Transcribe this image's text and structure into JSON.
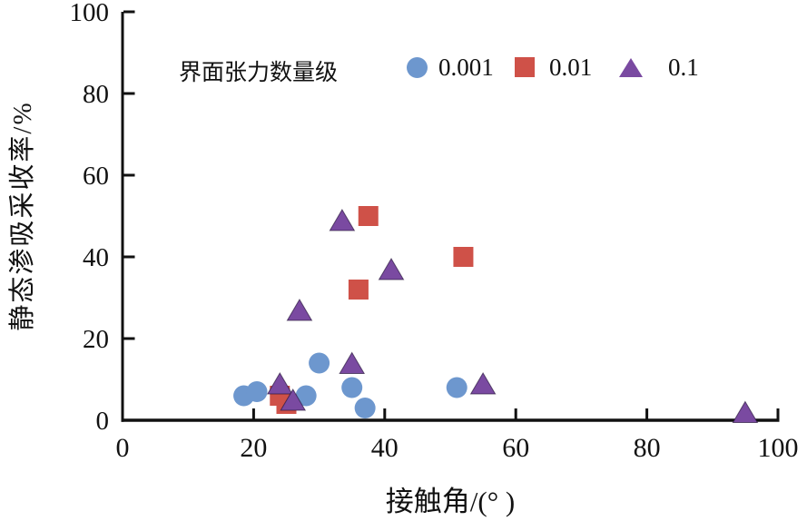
{
  "chart_data": {
    "type": "scatter",
    "title": "",
    "xlabel": "接触角/(°  )",
    "ylabel": "静态渗吸采收率/%",
    "xlim": [
      0,
      100
    ],
    "ylim": [
      0,
      100
    ],
    "xticks": [
      0,
      20,
      40,
      60,
      80,
      100
    ],
    "yticks": [
      0,
      20,
      40,
      60,
      80,
      100
    ],
    "grid": false,
    "legend_title": "界面张力数量级",
    "legend_position": "top-inside",
    "axis_color": "#111111",
    "background": "#ffffff",
    "series": [
      {
        "name": "0.001",
        "marker": "circle",
        "color": "#6d97ce",
        "points": [
          [
            18.5,
            6
          ],
          [
            20.5,
            7
          ],
          [
            28,
            6
          ],
          [
            30,
            14
          ],
          [
            35,
            8
          ],
          [
            37,
            3
          ],
          [
            51,
            8
          ]
        ]
      },
      {
        "name": "0.01",
        "marker": "square",
        "color": "#cf5148",
        "points": [
          [
            24,
            6
          ],
          [
            25,
            4
          ],
          [
            36,
            32
          ],
          [
            37.5,
            50
          ],
          [
            52,
            40
          ]
        ]
      },
      {
        "name": "0.1",
        "marker": "triangle",
        "color": "#7a4aa1",
        "points": [
          [
            24,
            9
          ],
          [
            26,
            5
          ],
          [
            27,
            27
          ],
          [
            33.5,
            49
          ],
          [
            35,
            14
          ],
          [
            41,
            37
          ],
          [
            55,
            9
          ],
          [
            95,
            2
          ]
        ]
      }
    ]
  }
}
